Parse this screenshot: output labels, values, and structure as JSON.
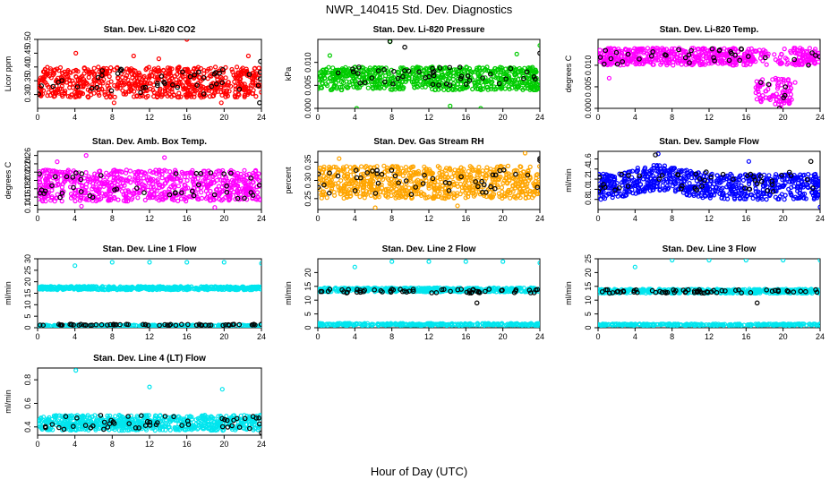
{
  "figure": {
    "title": "NWR_140415  Std. Dev. Diagnostics",
    "xlabel": "Hour of Day (UTC)"
  },
  "colors": {
    "background": "#ffffff",
    "axis": "#000000",
    "overlay_points": "#000000"
  },
  "chart_data": [
    {
      "type": "scatter",
      "title": "Stan. Dev. Li-820 CO2",
      "ylabel": "Licor ppm",
      "xlim": [
        0,
        24
      ],
      "x_ticks": [
        0,
        4,
        8,
        12,
        16,
        20,
        24
      ],
      "ylim": [
        0.25,
        0.5
      ],
      "y_ticks": [
        0.3,
        0.35,
        0.4,
        0.45,
        0.5
      ],
      "y_tick_labels": [
        "0.30",
        "0.35",
        "0.40",
        "0.45",
        "0.50"
      ],
      "color": "#ff0000",
      "series": [
        {
          "name": "dense",
          "band": [
            0.29,
            0.4
          ],
          "count": 700,
          "outliers": [
            [
              16.0,
              0.5
            ],
            [
              4.1,
              0.45
            ],
            [
              10.3,
              0.44
            ],
            [
              22.6,
              0.44
            ],
            [
              13.0,
              0.43
            ],
            [
              19.7,
              0.27
            ],
            [
              8.2,
              0.27
            ]
          ]
        },
        {
          "name": "black",
          "band": [
            0.3,
            0.4
          ],
          "count": 45,
          "outliers": [
            [
              23.9,
              0.42
            ],
            [
              23.8,
              0.27
            ]
          ]
        }
      ]
    },
    {
      "type": "scatter",
      "title": "Stan. Dev. Li-820 Pressure",
      "ylabel": "kPa",
      "xlim": [
        0,
        24
      ],
      "x_ticks": [
        0,
        4,
        8,
        12,
        16,
        20,
        24
      ],
      "ylim": [
        0.0,
        0.015
      ],
      "y_ticks": [
        0.0,
        0.005,
        0.01
      ],
      "y_tick_labels": [
        "0.000",
        "0.005",
        "0.010"
      ],
      "color": "#00cc00",
      "series": [
        {
          "name": "dense",
          "band": [
            0.004,
            0.009
          ],
          "count": 700,
          "outliers": [
            [
              7.8,
              0.0145
            ],
            [
              24.0,
              0.0137
            ],
            [
              1.3,
              0.0115
            ],
            [
              21.5,
              0.0118
            ],
            [
              4.2,
              0.0
            ],
            [
              17.6,
              0.0
            ],
            [
              14.3,
              0.0005
            ]
          ]
        },
        {
          "name": "black",
          "band": [
            0.005,
            0.009
          ],
          "count": 45,
          "outliers": [
            [
              7.8,
              0.0146
            ],
            [
              9.4,
              0.0133
            ],
            [
              24.0,
              0.012
            ]
          ]
        }
      ]
    },
    {
      "type": "scatter",
      "title": "Stan. Dev. Li-820 Temp.",
      "ylabel": "degrees C",
      "xlim": [
        0,
        24
      ],
      "x_ticks": [
        0,
        4,
        8,
        12,
        16,
        20,
        24
      ],
      "ylim": [
        0.0,
        0.016
      ],
      "y_ticks": [
        0.0,
        0.005,
        0.01
      ],
      "y_tick_labels": [
        "0.000",
        "0.005",
        "0.010"
      ],
      "color": "#ff00ff",
      "series": [
        {
          "name": "dense",
          "band": [
            0.01,
            0.014
          ],
          "count": 650,
          "outliers": [
            [
              17.5,
              0.005
            ],
            [
              17.8,
              0.003
            ],
            [
              18.1,
              0.004
            ],
            [
              19.5,
              0.001
            ],
            [
              19.8,
              0.0
            ],
            [
              20.1,
              0.002
            ],
            [
              20.4,
              0.004
            ],
            [
              1.2,
              0.007
            ],
            [
              21.3,
              0.006
            ]
          ]
        },
        {
          "name": "black",
          "band": [
            0.01,
            0.014
          ],
          "count": 40,
          "outliers": [
            [
              19.6,
              0.0
            ],
            [
              20.2,
              0.003
            ],
            [
              17.6,
              0.006
            ]
          ]
        }
      ]
    },
    {
      "type": "scatter",
      "title": "Stan. Dev. Amb. Box Temp.",
      "ylabel": "degrees C",
      "xlim": [
        0,
        24
      ],
      "x_ticks": [
        0,
        4,
        8,
        12,
        16,
        20,
        24
      ],
      "ylim": [
        0.13,
        0.27
      ],
      "y_ticks": [
        0.14,
        0.16,
        0.18,
        0.2,
        0.22,
        0.24,
        0.26
      ],
      "y_tick_labels": [
        "0.14",
        "0.16",
        "0.18",
        "0.20",
        "0.22",
        "0.24",
        "0.26"
      ],
      "color": "#ff00ff",
      "series": [
        {
          "name": "dense",
          "band": [
            0.15,
            0.225
          ],
          "count": 700,
          "outliers": [
            [
              5.2,
              0.26
            ],
            [
              13.6,
              0.255
            ],
            [
              2.1,
              0.245
            ],
            [
              4.7,
              0.138
            ],
            [
              19.0,
              0.135
            ]
          ]
        },
        {
          "name": "black",
          "band": [
            0.155,
            0.22
          ],
          "count": 45,
          "outliers": []
        }
      ]
    },
    {
      "type": "scatter",
      "title": "Stan. Dev. Gas Stream RH",
      "ylabel": "percent",
      "xlim": [
        0,
        24
      ],
      "x_ticks": [
        0,
        4,
        8,
        12,
        16,
        20,
        24
      ],
      "ylim": [
        0.22,
        0.38
      ],
      "y_ticks": [
        0.25,
        0.3,
        0.35
      ],
      "y_tick_labels": [
        "0.25",
        "0.30",
        "0.35"
      ],
      "color": "#ffa500",
      "series": [
        {
          "name": "dense",
          "band": [
            0.25,
            0.34
          ],
          "count": 750,
          "outliers": [
            [
              22.4,
              0.375
            ],
            [
              6.2,
              0.225
            ],
            [
              15.1,
              0.23
            ],
            [
              2.3,
              0.36
            ]
          ]
        },
        {
          "name": "black",
          "band": [
            0.26,
            0.33
          ],
          "count": 45,
          "outliers": [
            [
              24.0,
              0.36
            ],
            [
              24.0,
              0.355
            ]
          ]
        }
      ]
    },
    {
      "type": "scatter",
      "title": "Stan. Dev. Sample Flow",
      "ylabel": "ml/min",
      "xlim": [
        0,
        24
      ],
      "x_ticks": [
        0,
        4,
        8,
        12,
        16,
        20,
        24
      ],
      "ylim": [
        0.6,
        1.75
      ],
      "y_ticks": [
        0.8,
        1.0,
        1.2,
        1.4,
        1.6
      ],
      "y_tick_labels": [
        "0.8",
        "1.0",
        "1.2",
        "1.4",
        "1.6"
      ],
      "color": "#0000ff",
      "series": [
        {
          "name": "dense",
          "band": [
            0.85,
            1.35
          ],
          "count": 700,
          "outliers": [
            [
              6.5,
              1.7
            ],
            [
              16.3,
              1.55
            ],
            [
              24.0,
              0.65
            ],
            [
              0.3,
              0.8
            ]
          ]
        },
        {
          "name": "black",
          "band": [
            0.95,
            1.35
          ],
          "count": 45,
          "outliers": [
            [
              6.2,
              1.68
            ],
            [
              23.0,
              1.55
            ]
          ]
        }
      ]
    },
    {
      "type": "scatter",
      "title": "Stan. Dev. Line 1 Flow",
      "ylabel": "ml/min",
      "xlim": [
        0,
        24
      ],
      "x_ticks": [
        0,
        4,
        8,
        12,
        16,
        20,
        24
      ],
      "ylim": [
        0,
        30
      ],
      "y_ticks": [
        0,
        5,
        10,
        15,
        20,
        25,
        30
      ],
      "y_tick_labels": [
        "0",
        "5",
        "10",
        "15",
        "20",
        "25",
        "30"
      ],
      "color": "#00e5ee",
      "series": [
        {
          "name": "upper",
          "band": [
            16.5,
            18.0
          ],
          "count": 500,
          "outliers": [
            [
              4.0,
              27.0
            ],
            [
              8.0,
              28.5
            ],
            [
              12.0,
              28.5
            ],
            [
              16.0,
              28.5
            ],
            [
              20.0,
              28.5
            ],
            [
              24.0,
              28.0
            ]
          ]
        },
        {
          "name": "lower",
          "band": [
            0.6,
            1.2
          ],
          "count": 300,
          "outliers": []
        },
        {
          "name": "black",
          "band": [
            1.0,
            1.5
          ],
          "count": 60,
          "outliers": []
        }
      ]
    },
    {
      "type": "scatter",
      "title": "Stan. Dev. Line 2 Flow",
      "ylabel": "ml/min",
      "xlim": [
        0,
        24
      ],
      "x_ticks": [
        0,
        4,
        8,
        12,
        16,
        20,
        24
      ],
      "ylim": [
        0,
        25
      ],
      "y_ticks": [
        0,
        5,
        10,
        15,
        20
      ],
      "y_tick_labels": [
        "0",
        "5",
        "10",
        "15",
        "20"
      ],
      "color": "#00e5ee",
      "series": [
        {
          "name": "upper",
          "band": [
            13.0,
            14.5
          ],
          "count": 500,
          "outliers": [
            [
              4.0,
              22.0
            ],
            [
              8.0,
              24.0
            ],
            [
              12.0,
              24.0
            ],
            [
              16.0,
              24.0
            ],
            [
              20.0,
              24.0
            ],
            [
              24.0,
              23.5
            ]
          ]
        },
        {
          "name": "lower",
          "band": [
            0.8,
            1.6
          ],
          "count": 300,
          "outliers": []
        },
        {
          "name": "black",
          "band": [
            12.5,
            14.0
          ],
          "count": 60,
          "outliers": [
            [
              17.2,
              9.0
            ]
          ]
        }
      ]
    },
    {
      "type": "scatter",
      "title": "Stan. Dev. Line 3 Flow",
      "ylabel": "ml/min",
      "xlim": [
        0,
        24
      ],
      "x_ticks": [
        0,
        4,
        8,
        12,
        16,
        20,
        24
      ],
      "ylim": [
        0,
        25
      ],
      "y_ticks": [
        0,
        5,
        10,
        15,
        20,
        25
      ],
      "y_tick_labels": [
        "0",
        "5",
        "10",
        "15",
        "20",
        "25"
      ],
      "color": "#00e5ee",
      "series": [
        {
          "name": "upper",
          "band": [
            12.5,
            14.0
          ],
          "count": 500,
          "outliers": [
            [
              4.0,
              22.0
            ],
            [
              8.0,
              24.5
            ],
            [
              12.0,
              24.5
            ],
            [
              16.0,
              24.5
            ],
            [
              20.0,
              24.5
            ],
            [
              24.0,
              24.5
            ]
          ]
        },
        {
          "name": "lower",
          "band": [
            0.8,
            1.4
          ],
          "count": 300,
          "outliers": []
        },
        {
          "name": "black",
          "band": [
            12.5,
            13.8
          ],
          "count": 60,
          "outliers": [
            [
              17.2,
              9.0
            ]
          ]
        }
      ]
    },
    {
      "type": "scatter",
      "title": "Stan. Dev. Line 4 (LT) Flow",
      "ylabel": "ml/min",
      "xlim": [
        0,
        24
      ],
      "x_ticks": [
        0,
        4,
        8,
        12,
        16,
        20,
        24
      ],
      "ylim": [
        0.33,
        0.9
      ],
      "y_ticks": [
        0.4,
        0.6,
        0.8
      ],
      "y_tick_labels": [
        "0.4",
        "0.6",
        "0.8"
      ],
      "color": "#00e5ee",
      "series": [
        {
          "name": "dense",
          "band": [
            0.37,
            0.5
          ],
          "count": 650,
          "outliers": [
            [
              4.1,
              0.88
            ],
            [
              12.0,
              0.74
            ],
            [
              19.8,
              0.72
            ]
          ]
        },
        {
          "name": "black",
          "band": [
            0.38,
            0.5
          ],
          "count": 50,
          "outliers": [
            [
              24.0,
              0.35
            ]
          ]
        }
      ]
    }
  ]
}
